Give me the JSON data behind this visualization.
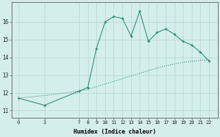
{
  "x_main": [
    0,
    3,
    7,
    8,
    9,
    10,
    11,
    12,
    13,
    14,
    15,
    16,
    17,
    18,
    19,
    20,
    21,
    22
  ],
  "y_main": [
    11.7,
    11.3,
    12.1,
    12.3,
    14.5,
    16.0,
    16.3,
    16.2,
    15.2,
    16.6,
    14.9,
    15.4,
    15.6,
    15.3,
    14.9,
    14.7,
    14.3,
    13.8
  ],
  "x_trend": [
    0,
    3,
    7,
    8,
    9,
    10,
    11,
    12,
    13,
    14,
    15,
    16,
    17,
    18,
    19,
    20,
    21,
    22
  ],
  "y_trend": [
    11.7,
    11.85,
    12.1,
    12.2,
    12.35,
    12.5,
    12.65,
    12.8,
    12.95,
    13.1,
    13.25,
    13.4,
    13.52,
    13.63,
    13.72,
    13.78,
    13.82,
    13.85
  ],
  "line_color": "#2d8b77",
  "bg_color": "#d4eeec",
  "grid_color": "#b8d8d5",
  "xlabel": "Humidex (Indice chaleur)",
  "xtick_labels": [
    "0",
    "3",
    "7",
    "8",
    "9",
    "10",
    "11",
    "12",
    "13",
    "14",
    "15",
    "16",
    "17",
    "18",
    "19",
    "20",
    "21",
    "22"
  ],
  "xtick_positions": [
    0,
    3,
    7,
    8,
    9,
    10,
    11,
    12,
    13,
    14,
    15,
    16,
    17,
    18,
    19,
    20,
    21,
    22
  ],
  "ytick_positions": [
    11,
    12,
    13,
    14,
    15,
    16
  ],
  "ytick_labels": [
    "11",
    "12",
    "13",
    "14",
    "15",
    "16"
  ],
  "ylim": [
    10.6,
    17.1
  ],
  "xlim": [
    -0.8,
    23.0
  ]
}
